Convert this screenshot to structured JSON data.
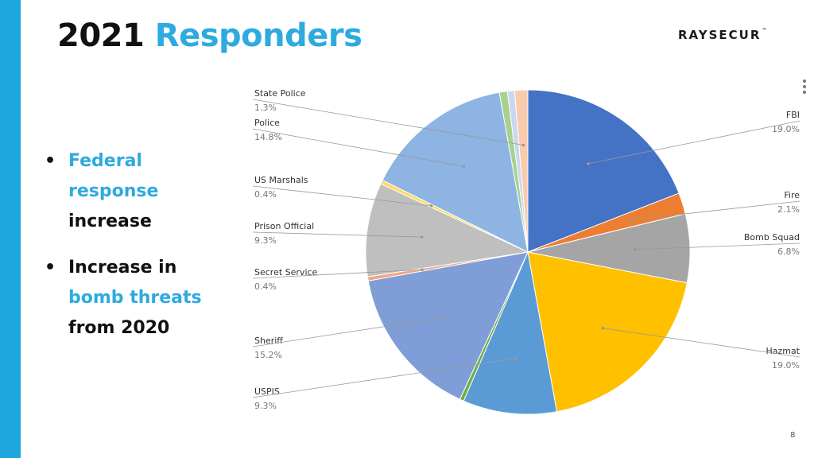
{
  "slide": {
    "title_prefix": "2021",
    "title_accent": "Responders",
    "logo": "RAYSECUR",
    "logo_tm": "™",
    "page_number": "8"
  },
  "bullets": [
    {
      "lines": [
        {
          "text": "Federal",
          "highlight": true
        },
        {
          "text": "response",
          "highlight": true
        },
        {
          "text": "increase",
          "highlight": false
        }
      ]
    },
    {
      "lines": [
        {
          "text": "Increase in",
          "highlight": false
        },
        {
          "text": "bomb threats",
          "highlight": true
        },
        {
          "text": "from 2020",
          "highlight": false
        }
      ]
    }
  ],
  "chart_data": {
    "type": "pie",
    "start_angle_deg": 0,
    "direction": "clockwise",
    "slices": [
      {
        "label": "FBI",
        "pct_label": "19.0%",
        "value": 19.0,
        "color": "#4472c4"
      },
      {
        "label": "Fire",
        "pct_label": "2.1%",
        "value": 2.1,
        "color": "#ed7d31"
      },
      {
        "label": "Bomb Squad",
        "pct_label": "6.8%",
        "value": 6.8,
        "color": "#a5a5a5"
      },
      {
        "label": "Hazmat",
        "pct_label": "19.0%",
        "value": 19.0,
        "color": "#ffc000"
      },
      {
        "label": "USPIS",
        "pct_label": "9.3%",
        "value": 9.3,
        "color": "#5b9bd5"
      },
      {
        "label": "",
        "pct_label": "",
        "value": 0.4,
        "color": "#70ad47"
      },
      {
        "label": "Sheriff",
        "pct_label": "15.2%",
        "value": 15.2,
        "color": "#7f9ed7"
      },
      {
        "label": "Secret Service",
        "pct_label": "0.4%",
        "value": 0.4,
        "color": "#f4a582"
      },
      {
        "label": "Prison Official",
        "pct_label": "9.3%",
        "value": 9.3,
        "color": "#bfbfbf"
      },
      {
        "label": "US Marshals",
        "pct_label": "0.4%",
        "value": 0.4,
        "color": "#ffd966"
      },
      {
        "label": "Police",
        "pct_label": "14.8%",
        "value": 14.8,
        "color": "#8db4e2"
      },
      {
        "label": "",
        "pct_label": "",
        "value": 0.8,
        "color": "#a9d18e"
      },
      {
        "label": "",
        "pct_label": "",
        "value": 0.7,
        "color": "#c9d7f0"
      },
      {
        "label": "State Police",
        "pct_label": "1.3%",
        "value": 1.3,
        "color": "#f8cbad"
      }
    ]
  }
}
